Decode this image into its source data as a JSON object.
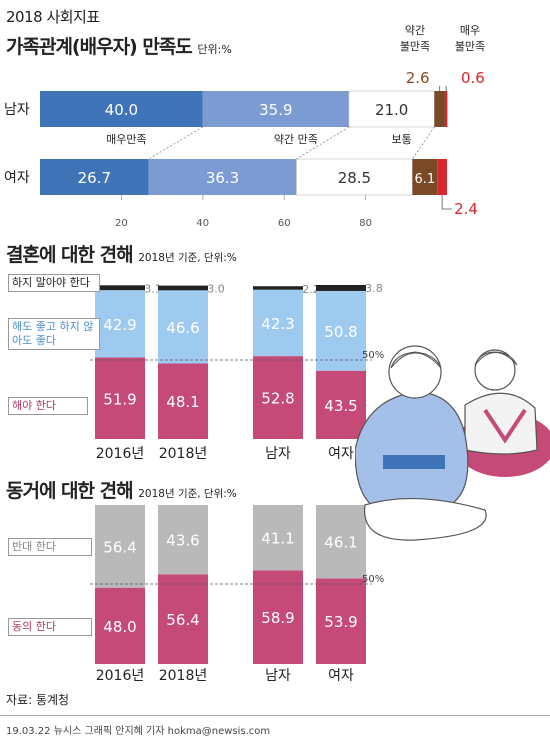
{
  "header": {
    "tag": "2018 사회지표"
  },
  "satisfaction": {
    "title": "가족관계(배우자) 만족도",
    "unit": "단위:%",
    "category_labels": [
      "매우만족",
      "약간 만족",
      "보통",
      "약간\n불만족",
      "매우\n불만족"
    ],
    "colors": [
      "#3f74b9",
      "#7b9bd2",
      "#ffffff",
      "#7a4a26",
      "#d7262c"
    ]
  },
  "marriage": {
    "title": "결혼에 대한 견해",
    "note": "2018년 기준, 단위:%",
    "threshold_label": "50%",
    "legend": [
      "하지 말아야 한다",
      "해도 좋고 하지 않아도 좋다",
      "해야 한다"
    ]
  },
  "cohab": {
    "title": "동거에 대한 견해",
    "note": "2018년 기준, 단위:%",
    "threshold_label": "50%",
    "legend": [
      "반대 한다",
      "동의 한다"
    ]
  },
  "footer": {
    "source": "자료: 통계청",
    "credit": "19.03.22  뉴시스 그래픽 안지혜 기자 hokma@newsis.com"
  },
  "chart_data": [
    {
      "type": "bar",
      "orientation": "horizontal-stacked",
      "title": "가족관계(배우자) 만족도",
      "categories": [
        "남자",
        "여자"
      ],
      "series": [
        {
          "name": "매우만족",
          "values": [
            40.0,
            26.7
          ]
        },
        {
          "name": "약간 만족",
          "values": [
            35.9,
            36.3
          ]
        },
        {
          "name": "보통",
          "values": [
            21.0,
            28.5
          ]
        },
        {
          "name": "약간 불만족",
          "values": [
            2.6,
            6.1
          ]
        },
        {
          "name": "매우 불만족",
          "values": [
            0.6,
            2.4
          ]
        }
      ],
      "x_ticks": [
        20,
        40,
        60,
        80
      ],
      "xlim": [
        0,
        100
      ]
    },
    {
      "type": "bar",
      "orientation": "vertical-stacked",
      "title": "결혼에 대한 견해",
      "categories": [
        "2016년",
        "2018년",
        "남자",
        "여자"
      ],
      "series": [
        {
          "name": "해야 한다",
          "values": [
            51.9,
            48.1,
            52.8,
            43.5
          ]
        },
        {
          "name": "해도 좋고 하지 않아도 좋다",
          "values": [
            42.9,
            46.6,
            42.3,
            50.8
          ]
        },
        {
          "name": "하지 말아야 한다",
          "values": [
            3.1,
            3.0,
            2.2,
            3.8
          ]
        }
      ],
      "ylim": [
        0,
        100
      ]
    },
    {
      "type": "bar",
      "orientation": "vertical-stacked",
      "title": "동거에 대한 견해",
      "categories": [
        "2016년",
        "2018년",
        "남자",
        "여자"
      ],
      "series": [
        {
          "name": "동의 한다",
          "values": [
            48.0,
            56.4,
            58.9,
            53.9
          ]
        },
        {
          "name": "반대 한다",
          "values": [
            56.4,
            43.6,
            41.1,
            46.1
          ]
        }
      ],
      "ylim": [
        0,
        100
      ]
    }
  ]
}
